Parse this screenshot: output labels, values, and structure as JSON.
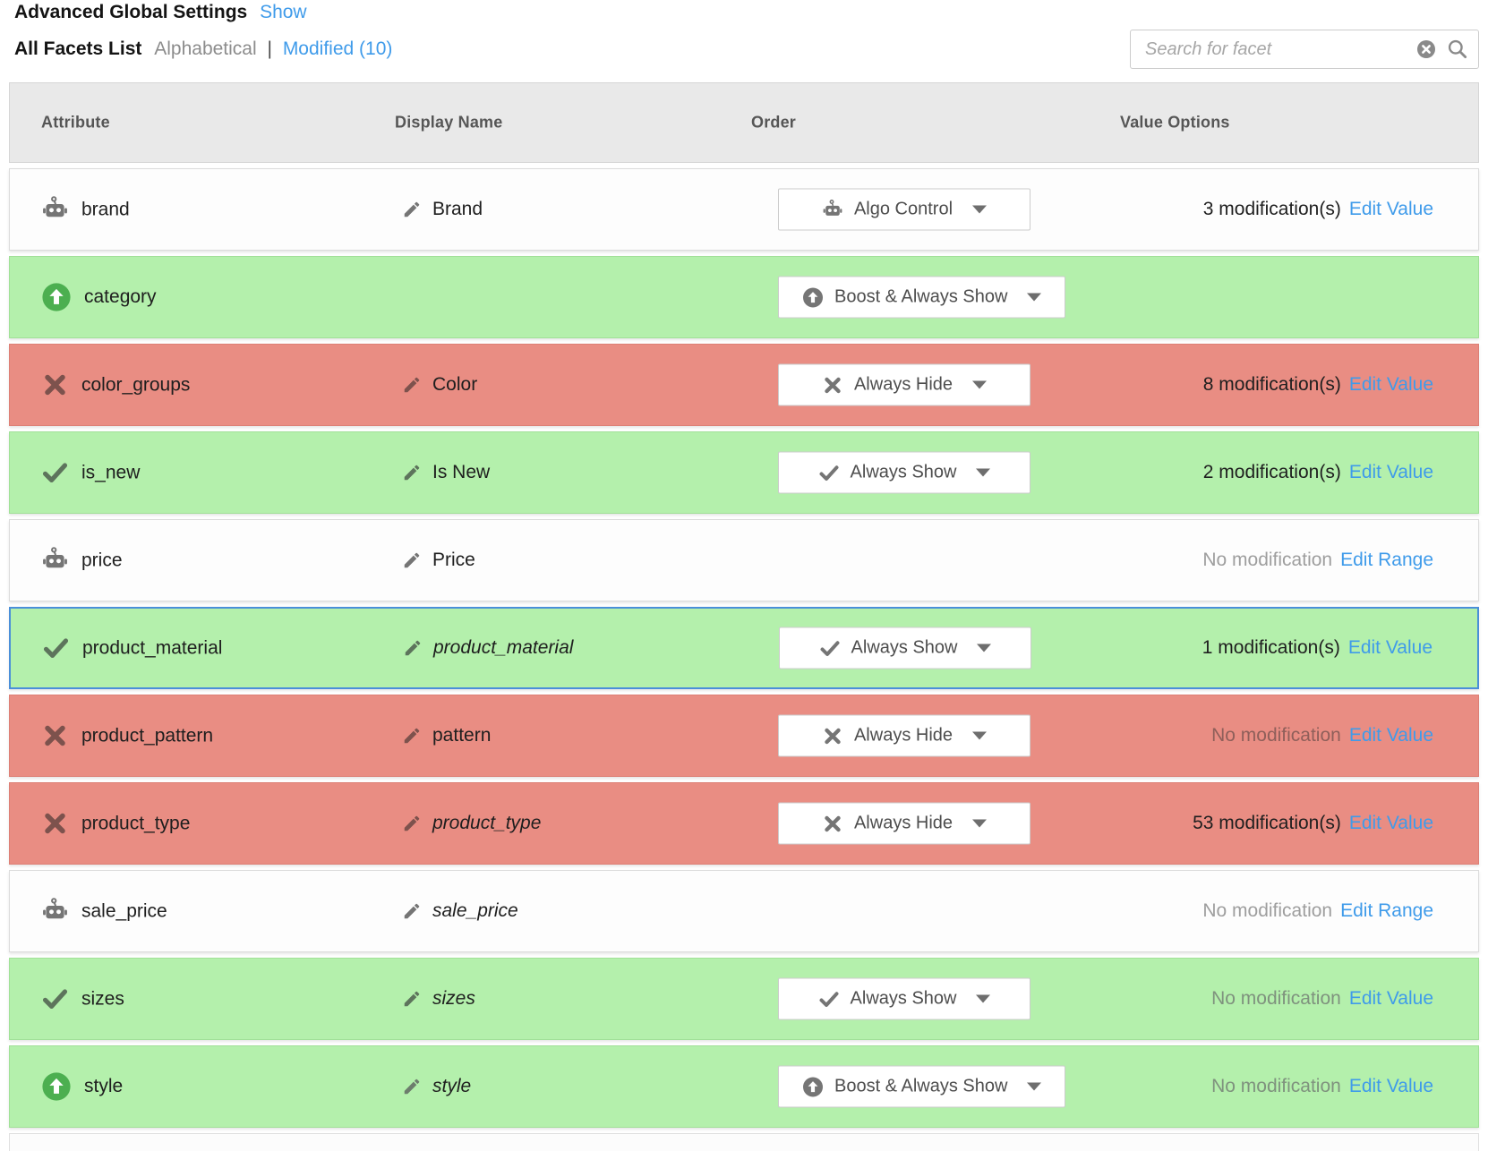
{
  "page": {
    "title": "Advanced Global Settings",
    "show_link": "Show",
    "list_title": "All Facets List",
    "sort_alphabetical": "Alphabetical",
    "separator": "|",
    "sort_modified": "Modified (10)"
  },
  "search": {
    "placeholder": "Search for facet",
    "clear_icon": "clear-circle-icon",
    "search_icon": "search-icon"
  },
  "colors": {
    "accent_blue": "#3f9bea",
    "row_green": "#b4f0ac",
    "row_red": "#e98d83",
    "boost_green": "#4caf50",
    "selected_border_blue": "#4a8fd9"
  },
  "table": {
    "columns": [
      "Attribute",
      "Display Name",
      "Order",
      "Value Options"
    ],
    "rows": [
      {
        "attribute": "brand",
        "attr_icon": "robot-icon",
        "display_name": "Brand",
        "display_icon": "pencil-icon",
        "display_italic": false,
        "order_label": "Algo Control",
        "order_icon": "robot-icon",
        "mod_text": "3 modification(s)",
        "mod_muted": false,
        "edit_label": "Edit Value",
        "state": "default",
        "selected": false
      },
      {
        "attribute": "category",
        "attr_icon": "boost-circle-icon",
        "display_name": "",
        "display_icon": "",
        "display_italic": false,
        "order_label": "Boost & Always Show",
        "order_icon": "boost-circle-icon",
        "mod_text": "",
        "mod_muted": false,
        "edit_label": "",
        "state": "boost",
        "selected": false
      },
      {
        "attribute": "color_groups",
        "attr_icon": "x-icon",
        "display_name": "Color",
        "display_icon": "pencil-icon",
        "display_italic": false,
        "order_label": "Always Hide",
        "order_icon": "x-icon",
        "mod_text": "8 modification(s)",
        "mod_muted": false,
        "edit_label": "Edit Value",
        "state": "hide",
        "selected": false
      },
      {
        "attribute": "is_new",
        "attr_icon": "check-icon",
        "display_name": "Is New",
        "display_icon": "pencil-icon",
        "display_italic": false,
        "order_label": "Always Show",
        "order_icon": "check-icon",
        "mod_text": "2 modification(s)",
        "mod_muted": false,
        "edit_label": "Edit Value",
        "state": "show",
        "selected": false
      },
      {
        "attribute": "price",
        "attr_icon": "robot-icon",
        "display_name": "Price",
        "display_icon": "pencil-icon",
        "display_italic": false,
        "order_label": "",
        "order_icon": "",
        "mod_text": "No modification",
        "mod_muted": true,
        "edit_label": "Edit Range",
        "state": "default",
        "selected": false
      },
      {
        "attribute": "product_material",
        "attr_icon": "check-icon",
        "display_name": "product_material",
        "display_icon": "pencil-icon",
        "display_italic": true,
        "order_label": "Always Show",
        "order_icon": "check-icon",
        "mod_text": "1 modification(s)",
        "mod_muted": false,
        "edit_label": "Edit Value",
        "state": "show",
        "selected": true
      },
      {
        "attribute": "product_pattern",
        "attr_icon": "x-icon",
        "display_name": "pattern",
        "display_icon": "pencil-icon",
        "display_italic": false,
        "order_label": "Always Hide",
        "order_icon": "x-icon",
        "mod_text": "No modification",
        "mod_muted": true,
        "edit_label": "Edit Value",
        "state": "hide",
        "selected": false
      },
      {
        "attribute": "product_type",
        "attr_icon": "x-icon",
        "display_name": "product_type",
        "display_icon": "pencil-icon",
        "display_italic": true,
        "order_label": "Always Hide",
        "order_icon": "x-icon",
        "mod_text": "53 modification(s)",
        "mod_muted": false,
        "edit_label": "Edit Value",
        "state": "hide",
        "selected": false
      },
      {
        "attribute": "sale_price",
        "attr_icon": "robot-icon",
        "display_name": "sale_price",
        "display_icon": "pencil-icon",
        "display_italic": true,
        "order_label": "",
        "order_icon": "",
        "mod_text": "No modification",
        "mod_muted": true,
        "edit_label": "Edit Range",
        "state": "default",
        "selected": false
      },
      {
        "attribute": "sizes",
        "attr_icon": "check-icon",
        "display_name": "sizes",
        "display_icon": "pencil-icon",
        "display_italic": true,
        "order_label": "Always Show",
        "order_icon": "check-icon",
        "mod_text": "No modification",
        "mod_muted": true,
        "edit_label": "Edit Value",
        "state": "show",
        "selected": false
      },
      {
        "attribute": "style",
        "attr_icon": "boost-circle-icon",
        "display_name": "style",
        "display_icon": "pencil-icon",
        "display_italic": true,
        "order_label": "Boost & Always Show",
        "order_icon": "boost-circle-icon",
        "mod_text": "No modification",
        "mod_muted": true,
        "edit_label": "Edit Value",
        "state": "boost",
        "selected": false
      }
    ]
  }
}
